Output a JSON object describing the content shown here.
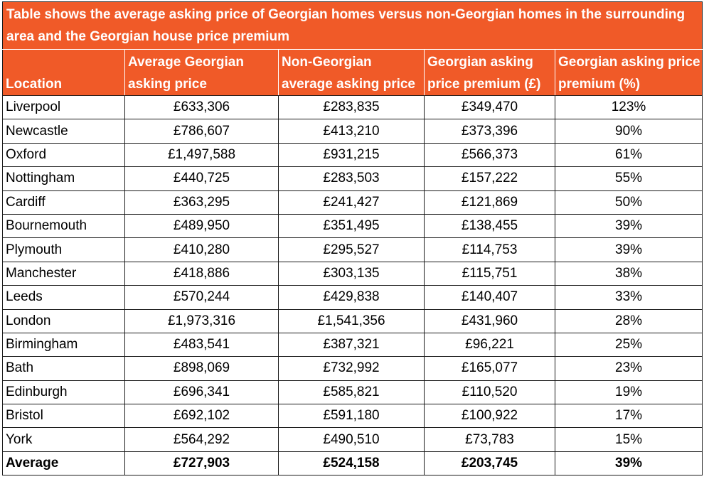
{
  "title": "Table shows the average asking price of Georgian homes versus non-Georgian homes in the surrounding area and the Georgian house price premium",
  "colors": {
    "header_bg": "#f05a28",
    "header_text": "#ffffff",
    "border": "#1a1a1a"
  },
  "columns": [
    "Location",
    "Average Georgian asking price",
    "Non-Georgian average asking price",
    "Georgian asking price premium (£)",
    "Georgian asking price premium (%)"
  ],
  "rows": [
    [
      "Liverpool",
      "£633,306",
      "£283,835",
      "£349,470",
      "123%"
    ],
    [
      "Newcastle",
      "£786,607",
      "£413,210",
      "£373,396",
      "90%"
    ],
    [
      "Oxford",
      "£1,497,588",
      "£931,215",
      "£566,373",
      "61%"
    ],
    [
      "Nottingham",
      "£440,725",
      "£283,503",
      "£157,222",
      "55%"
    ],
    [
      "Cardiff",
      "£363,295",
      "£241,427",
      "£121,869",
      "50%"
    ],
    [
      "Bournemouth",
      "£489,950",
      "£351,495",
      "£138,455",
      "39%"
    ],
    [
      "Plymouth",
      "£410,280",
      "£295,527",
      "£114,753",
      "39%"
    ],
    [
      "Manchester",
      "£418,886",
      "£303,135",
      "£115,751",
      "38%"
    ],
    [
      "Leeds",
      "£570,244",
      "£429,838",
      "£140,407",
      "33%"
    ],
    [
      "London",
      "£1,973,316",
      "£1,541,356",
      "£431,960",
      "28%"
    ],
    [
      "Birmingham",
      "£483,541",
      "£387,321",
      "£96,221",
      "25%"
    ],
    [
      "Bath",
      "£898,069",
      "£732,992",
      "£165,077",
      "23%"
    ],
    [
      "Edinburgh",
      "£696,341",
      "£585,821",
      "£110,520",
      "19%"
    ],
    [
      "Bristol",
      "£692,102",
      "£591,180",
      "£100,922",
      "17%"
    ],
    [
      "York",
      "£564,292",
      "£490,510",
      "£73,783",
      "15%"
    ]
  ],
  "average": [
    "Average",
    "£727,903",
    "£524,158",
    "£203,745",
    "39%"
  ]
}
